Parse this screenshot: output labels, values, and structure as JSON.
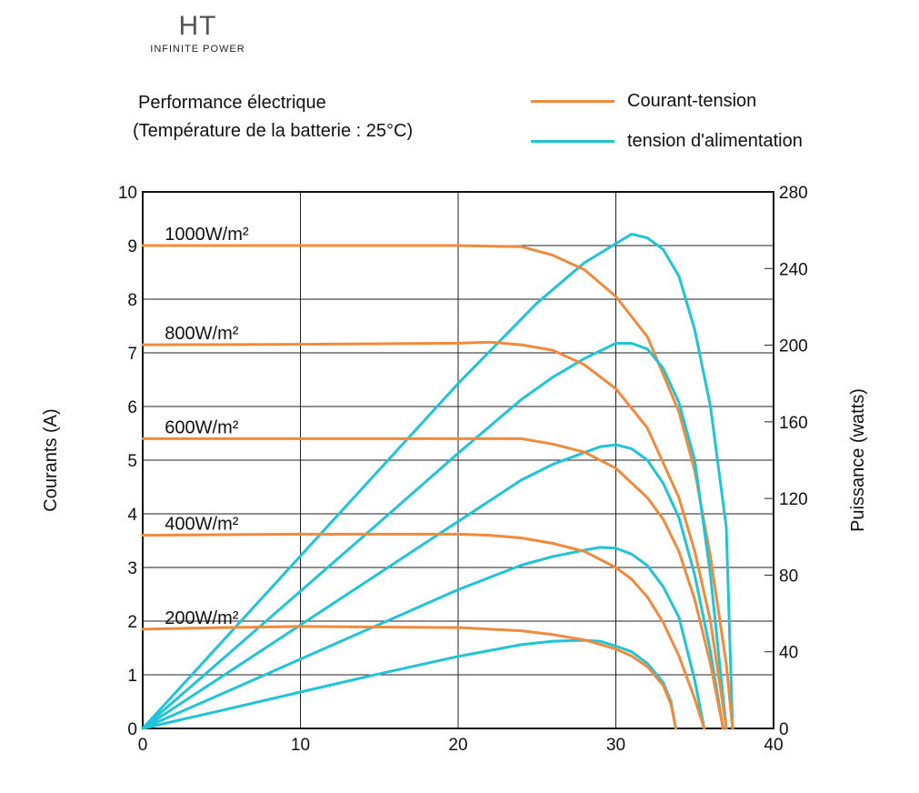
{
  "logo": {
    "mark": "HT",
    "tagline": "INFINITE POWER"
  },
  "chart_data": {
    "type": "line",
    "title": "Performance électrique",
    "subtitle": "(Température de la batterie : 25°C)",
    "xlabel": "",
    "ylabel": "Courants (A)",
    "y2label": "Puissance (watts)",
    "xlim": [
      0,
      40
    ],
    "ylim": [
      0,
      10
    ],
    "y2lim": [
      0,
      280
    ],
    "xticks": [
      0,
      10,
      20,
      30,
      40
    ],
    "yticks": [
      0,
      1,
      2,
      3,
      4,
      5,
      6,
      7,
      8,
      9,
      10
    ],
    "y2ticks": [
      0,
      40,
      80,
      120,
      160,
      200,
      240,
      280
    ],
    "grid": true,
    "legend": [
      {
        "label": "Courant-tension",
        "color": "#f08a3c"
      },
      {
        "label": "tension d'alimentation",
        "color": "#20c4d6"
      }
    ],
    "current_color": "#f08a3c",
    "power_color": "#20c4d6",
    "series": [
      {
        "label": "1000W/m²",
        "current": [
          [
            0,
            9.0
          ],
          [
            10,
            9.0
          ],
          [
            20,
            9.0
          ],
          [
            24,
            8.98
          ],
          [
            26,
            8.82
          ],
          [
            28,
            8.55
          ],
          [
            30,
            8.05
          ],
          [
            32,
            7.3
          ],
          [
            34,
            5.9
          ],
          [
            35,
            4.8
          ],
          [
            36,
            3.2
          ],
          [
            37,
            1.2
          ],
          [
            37.4,
            0
          ]
        ],
        "power": [
          [
            0,
            0
          ],
          [
            5,
            45
          ],
          [
            10,
            90
          ],
          [
            15,
            135
          ],
          [
            20,
            180
          ],
          [
            25,
            222
          ],
          [
            28,
            243
          ],
          [
            30,
            253
          ],
          [
            31,
            258
          ],
          [
            32,
            256
          ],
          [
            33,
            250
          ],
          [
            34,
            236
          ],
          [
            35,
            208
          ],
          [
            36,
            168
          ],
          [
            37,
            105
          ],
          [
            37.4,
            0
          ]
        ]
      },
      {
        "label": "800W/m²",
        "current": [
          [
            0,
            7.15
          ],
          [
            10,
            7.16
          ],
          [
            20,
            7.18
          ],
          [
            22,
            7.2
          ],
          [
            24,
            7.15
          ],
          [
            26,
            7.05
          ],
          [
            28,
            6.78
          ],
          [
            30,
            6.33
          ],
          [
            32,
            5.6
          ],
          [
            34,
            4.3
          ],
          [
            35,
            3.3
          ],
          [
            36,
            2.0
          ],
          [
            37,
            0
          ]
        ],
        "power": [
          [
            0,
            0
          ],
          [
            5,
            35.8
          ],
          [
            10,
            71.6
          ],
          [
            15,
            107.5
          ],
          [
            20,
            143.6
          ],
          [
            24,
            171.6
          ],
          [
            26,
            183.3
          ],
          [
            28,
            193
          ],
          [
            29,
            197
          ],
          [
            30,
            201
          ],
          [
            31,
            201
          ],
          [
            32,
            198
          ],
          [
            33,
            188
          ],
          [
            34,
            170
          ],
          [
            35,
            140
          ],
          [
            36,
            80
          ],
          [
            37,
            0
          ]
        ]
      },
      {
        "label": "600W/m²",
        "current": [
          [
            0,
            5.4
          ],
          [
            10,
            5.4
          ],
          [
            20,
            5.4
          ],
          [
            24,
            5.4
          ],
          [
            26,
            5.3
          ],
          [
            28,
            5.15
          ],
          [
            30,
            4.85
          ],
          [
            32,
            4.3
          ],
          [
            33,
            3.9
          ],
          [
            34,
            3.3
          ],
          [
            35,
            2.4
          ],
          [
            36,
            1.2
          ],
          [
            36.8,
            0
          ]
        ],
        "power": [
          [
            0,
            0
          ],
          [
            5,
            27
          ],
          [
            10,
            54
          ],
          [
            15,
            81
          ],
          [
            20,
            108
          ],
          [
            24,
            129.6
          ],
          [
            26,
            137.8
          ],
          [
            28,
            144
          ],
          [
            29,
            147
          ],
          [
            30,
            148
          ],
          [
            31,
            146
          ],
          [
            32,
            140
          ],
          [
            33,
            128
          ],
          [
            34,
            110
          ],
          [
            35,
            80
          ],
          [
            36,
            40
          ],
          [
            36.8,
            0
          ]
        ]
      },
      {
        "label": "400W/m²",
        "current": [
          [
            0,
            3.6
          ],
          [
            10,
            3.62
          ],
          [
            20,
            3.62
          ],
          [
            22,
            3.6
          ],
          [
            24,
            3.55
          ],
          [
            26,
            3.45
          ],
          [
            28,
            3.3
          ],
          [
            30,
            3.0
          ],
          [
            31,
            2.78
          ],
          [
            32,
            2.45
          ],
          [
            33,
            1.98
          ],
          [
            34,
            1.35
          ],
          [
            35,
            0.55
          ],
          [
            35.6,
            0
          ]
        ],
        "power": [
          [
            0,
            0
          ],
          [
            5,
            18
          ],
          [
            10,
            36.2
          ],
          [
            15,
            54.3
          ],
          [
            20,
            72.4
          ],
          [
            24,
            85.2
          ],
          [
            26,
            89.7
          ],
          [
            28,
            93
          ],
          [
            29,
            94.5
          ],
          [
            30,
            94
          ],
          [
            31,
            91
          ],
          [
            32,
            85
          ],
          [
            33,
            74
          ],
          [
            34,
            58
          ],
          [
            35,
            25
          ],
          [
            35.6,
            0
          ]
        ]
      },
      {
        "label": "200W/m²",
        "current": [
          [
            0,
            1.85
          ],
          [
            5,
            1.88
          ],
          [
            10,
            1.9
          ],
          [
            20,
            1.88
          ],
          [
            24,
            1.82
          ],
          [
            26,
            1.75
          ],
          [
            28,
            1.65
          ],
          [
            30,
            1.48
          ],
          [
            31,
            1.35
          ],
          [
            32,
            1.15
          ],
          [
            33,
            0.8
          ],
          [
            33.5,
            0.45
          ],
          [
            33.8,
            0
          ]
        ],
        "power": [
          [
            0,
            0
          ],
          [
            5,
            9.4
          ],
          [
            10,
            19
          ],
          [
            15,
            28.5
          ],
          [
            20,
            37.6
          ],
          [
            24,
            43.7
          ],
          [
            26,
            45.5
          ],
          [
            28,
            46
          ],
          [
            29,
            45.5
          ],
          [
            30,
            43
          ],
          [
            31,
            40
          ],
          [
            32,
            34
          ],
          [
            33,
            24
          ],
          [
            33.5,
            14
          ],
          [
            33.8,
            0
          ]
        ]
      }
    ]
  }
}
